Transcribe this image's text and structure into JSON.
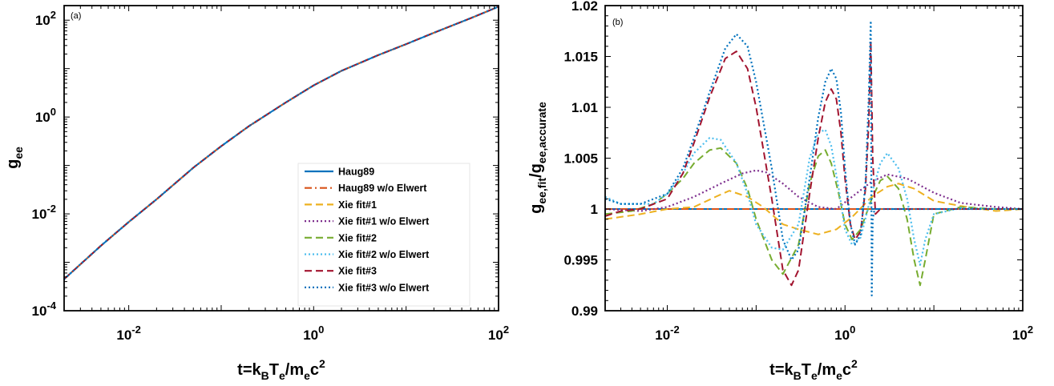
{
  "chart_data": [
    {
      "type": "line",
      "panel_label": "(a)",
      "xlabel": "t=k_B T_e/m_e c^2",
      "ylabel": "g_ee",
      "xscale": "log",
      "yscale": "log",
      "xlim": [
        0.002,
        100
      ],
      "ylim": [
        0.0001,
        200
      ],
      "xticks": [
        {
          "v": 0.01,
          "base": "10",
          "exp": "-2"
        },
        {
          "v": 1,
          "base": "10",
          "exp": "0"
        },
        {
          "v": 100,
          "base": "10",
          "exp": "2"
        }
      ],
      "yticks": [
        {
          "v": 0.0001,
          "base": "10",
          "exp": "-4"
        },
        {
          "v": 0.01,
          "base": "10",
          "exp": "-2"
        },
        {
          "v": 1,
          "base": "10",
          "exp": "0"
        },
        {
          "v": 100,
          "base": "10",
          "exp": "2"
        }
      ],
      "legend_position": "bottom-right",
      "grid": false,
      "series": [
        {
          "name": "Haug89",
          "color": "#0072BD",
          "dash": "solid",
          "x": [
            0.002,
            0.005,
            0.01,
            0.02,
            0.05,
            0.1,
            0.2,
            0.5,
            1,
            2,
            5,
            10,
            20,
            50,
            100
          ],
          "y": [
            0.00045,
            0.0022,
            0.0068,
            0.02,
            0.09,
            0.25,
            0.65,
            2.0,
            4.5,
            9.0,
            19,
            32,
            55,
            110,
            190
          ]
        },
        {
          "name": "Haug89 w/o Elwert",
          "color": "#D95319",
          "dash": "dashdot",
          "x": [
            0.002,
            0.005,
            0.01,
            0.02,
            0.05,
            0.1,
            0.2,
            0.5,
            1,
            2,
            5,
            10,
            20,
            50,
            100
          ],
          "y": [
            0.00045,
            0.0022,
            0.0068,
            0.02,
            0.09,
            0.25,
            0.65,
            2.0,
            4.5,
            9.0,
            19,
            32,
            55,
            110,
            190
          ]
        },
        {
          "name": "Xie fit#1",
          "color": "#EDB120",
          "dash": "dashed",
          "x": [
            0.002,
            0.005,
            0.01,
            0.02,
            0.05,
            0.1,
            0.2,
            0.5,
            1,
            2,
            5,
            10,
            20,
            50,
            100
          ],
          "y": [
            0.00045,
            0.0022,
            0.0068,
            0.02,
            0.09,
            0.25,
            0.65,
            2.0,
            4.5,
            9.0,
            19,
            32,
            55,
            110,
            190
          ]
        },
        {
          "name": "Xie fit#1 w/o Elwert",
          "color": "#7E2F8E",
          "dash": "dotted",
          "x": [
            0.002,
            0.005,
            0.01,
            0.02,
            0.05,
            0.1,
            0.2,
            0.5,
            1,
            2,
            5,
            10,
            20,
            50,
            100
          ],
          "y": [
            0.00045,
            0.0022,
            0.0068,
            0.02,
            0.09,
            0.25,
            0.65,
            2.0,
            4.5,
            9.0,
            19,
            32,
            55,
            110,
            190
          ]
        },
        {
          "name": "Xie fit#2",
          "color": "#77AC30",
          "dash": "dashed",
          "x": [
            0.002,
            0.005,
            0.01,
            0.02,
            0.05,
            0.1,
            0.2,
            0.5,
            1,
            2,
            5,
            10,
            20,
            50,
            100
          ],
          "y": [
            0.00045,
            0.0022,
            0.0068,
            0.02,
            0.09,
            0.25,
            0.65,
            2.0,
            4.5,
            9.0,
            19,
            32,
            55,
            110,
            190
          ]
        },
        {
          "name": "Xie fit#2 w/o Elwert",
          "color": "#4DBEEE",
          "dash": "dotted",
          "x": [
            0.002,
            0.005,
            0.01,
            0.02,
            0.05,
            0.1,
            0.2,
            0.5,
            1,
            2,
            5,
            10,
            20,
            50,
            100
          ],
          "y": [
            0.00045,
            0.0022,
            0.0068,
            0.02,
            0.09,
            0.25,
            0.65,
            2.0,
            4.5,
            9.0,
            19,
            32,
            55,
            110,
            190
          ]
        },
        {
          "name": "Xie fit#3",
          "color": "#A2142F",
          "dash": "dashed",
          "x": [
            0.002,
            0.005,
            0.01,
            0.02,
            0.05,
            0.1,
            0.2,
            0.5,
            1,
            2,
            5,
            10,
            20,
            50,
            100
          ],
          "y": [
            0.00045,
            0.0022,
            0.0068,
            0.02,
            0.09,
            0.25,
            0.65,
            2.0,
            4.5,
            9.0,
            19,
            32,
            55,
            110,
            190
          ]
        },
        {
          "name": "Xie fit#3 w/o Elwert",
          "color": "#0072BD",
          "dash": "dotted",
          "x": [
            0.002,
            0.005,
            0.01,
            0.02,
            0.05,
            0.1,
            0.2,
            0.5,
            1,
            2,
            5,
            10,
            20,
            50,
            100
          ],
          "y": [
            0.00045,
            0.0022,
            0.0068,
            0.02,
            0.09,
            0.25,
            0.65,
            2.0,
            4.5,
            9.0,
            19,
            32,
            55,
            110,
            190
          ]
        }
      ]
    },
    {
      "type": "line",
      "panel_label": "(b)",
      "xlabel": "t=k_B T_e/m_e c^2",
      "ylabel": "g_ee,fit/g_ee,accurate",
      "xscale": "log",
      "yscale": "linear",
      "xlim": [
        0.002,
        100
      ],
      "ylim": [
        0.99,
        1.02
      ],
      "xticks": [
        {
          "v": 0.01,
          "base": "10",
          "exp": "-2"
        },
        {
          "v": 1,
          "base": "10",
          "exp": "0"
        },
        {
          "v": 100,
          "base": "10",
          "exp": "2"
        }
      ],
      "yticks": [
        {
          "v": 0.99,
          "label": "0.99"
        },
        {
          "v": 0.995,
          "label": "0.995"
        },
        {
          "v": 1,
          "label": "1"
        },
        {
          "v": 1.005,
          "label": "1.005"
        },
        {
          "v": 1.01,
          "label": "1.01"
        },
        {
          "v": 1.015,
          "label": "1.015"
        },
        {
          "v": 1.02,
          "label": "1.02"
        }
      ],
      "grid": false,
      "series": [
        {
          "name": "Haug89",
          "color": "#0072BD",
          "dash": "solid",
          "x": [
            0.002,
            100
          ],
          "y": [
            1.0,
            1.0
          ]
        },
        {
          "name": "Haug89 w/o Elwert",
          "color": "#D95319",
          "dash": "dashdot",
          "x": [
            0.002,
            100
          ],
          "y": [
            1.0,
            1.0
          ]
        },
        {
          "name": "Xie fit#1",
          "color": "#EDB120",
          "dash": "dashed",
          "x": [
            0.002,
            0.005,
            0.01,
            0.02,
            0.035,
            0.05,
            0.08,
            0.12,
            0.2,
            0.3,
            0.5,
            0.8,
            1.2,
            2,
            3,
            4,
            6,
            10,
            20,
            50,
            100
          ],
          "y": [
            0.999,
            0.9995,
            1.0,
            1.0002,
            1.0012,
            1.0018,
            1.0012,
            1.0002,
            0.9985,
            0.998,
            0.9975,
            0.998,
            0.9992,
            1.0012,
            1.0022,
            1.0025,
            1.002,
            1.0008,
            1.0003,
            0.9998,
            1.0
          ]
        },
        {
          "name": "Xie fit#1 w/o Elwert",
          "color": "#7E2F8E",
          "dash": "dotted",
          "x": [
            0.002,
            0.005,
            0.01,
            0.02,
            0.04,
            0.07,
            0.1,
            0.13,
            0.2,
            0.3,
            0.5,
            0.8,
            1.2,
            2,
            3,
            5,
            10,
            20,
            50,
            100
          ],
          "y": [
            1.0,
            0.9998,
            1.0002,
            1.0012,
            1.0025,
            1.0035,
            1.0038,
            1.0036,
            1.0025,
            1.0012,
            1.0002,
            1.0,
            1.0012,
            1.0027,
            1.0034,
            1.003,
            1.0016,
            1.0006,
            1.0002,
            1.0
          ]
        },
        {
          "name": "Xie fit#2",
          "color": "#77AC30",
          "dash": "dashed",
          "x": [
            0.002,
            0.004,
            0.007,
            0.01,
            0.015,
            0.02,
            0.03,
            0.04,
            0.06,
            0.08,
            0.1,
            0.15,
            0.2,
            0.3,
            0.4,
            0.5,
            0.6,
            0.7,
            0.85,
            1.0,
            1.2,
            1.5,
            2,
            2.5,
            3,
            4,
            5,
            6,
            7,
            8,
            10,
            20,
            50,
            100
          ],
          "y": [
            0.9995,
            0.9998,
            1.0005,
            1.0015,
            1.003,
            1.0045,
            1.0058,
            1.006,
            1.0045,
            1.002,
            0.999,
            0.995,
            0.9936,
            0.9965,
            1.0025,
            1.0052,
            1.0058,
            1.0045,
            1.0015,
            0.9985,
            0.997,
            0.998,
            1.001,
            1.0028,
            1.0032,
            1.002,
            0.999,
            0.995,
            0.9925,
            0.995,
            0.9995,
            1.0002,
            1.0,
            1.0
          ]
        },
        {
          "name": "Xie fit#2 w/o Elwert",
          "color": "#4DBEEE",
          "dash": "dotted",
          "x": [
            0.002,
            0.003,
            0.004,
            0.007,
            0.01,
            0.015,
            0.02,
            0.03,
            0.04,
            0.06,
            0.08,
            0.1,
            0.15,
            0.2,
            0.3,
            0.4,
            0.5,
            0.6,
            0.7,
            0.85,
            1.0,
            1.2,
            1.5,
            2,
            2.5,
            3,
            4,
            5,
            6,
            7,
            8,
            10,
            20,
            50,
            100
          ],
          "y": [
            1.0012,
            1.0005,
            1.0005,
            1.0005,
            1.0015,
            1.0035,
            1.0055,
            1.007,
            1.0068,
            1.0045,
            1.0015,
            0.9985,
            0.9962,
            0.996,
            0.9985,
            1.005,
            1.0075,
            1.0078,
            1.0062,
            1.002,
            0.998,
            0.9965,
            0.9972,
            1.0015,
            1.0045,
            1.0055,
            1.004,
            1.001,
            0.997,
            0.9945,
            0.997,
            0.9995,
            1.0001,
            1.0,
            1.0
          ]
        },
        {
          "name": "Xie fit#3",
          "color": "#A2142F",
          "dash": "dashed",
          "x": [
            0.002,
            0.003,
            0.005,
            0.01,
            0.015,
            0.02,
            0.03,
            0.045,
            0.06,
            0.08,
            0.1,
            0.15,
            0.2,
            0.25,
            0.3,
            0.4,
            0.5,
            0.6,
            0.7,
            0.8,
            0.9,
            1.0,
            1.15,
            1.3,
            1.5,
            1.7,
            1.85,
            1.95,
            2.05,
            2.2,
            2.5,
            3,
            5,
            10,
            100
          ],
          "y": [
            0.9993,
            0.9998,
            1.0,
            1.001,
            1.0035,
            1.0065,
            1.011,
            1.0148,
            1.0155,
            1.0138,
            1.01,
            1.001,
            0.994,
            0.9925,
            0.994,
            1.0015,
            1.007,
            1.0105,
            1.0118,
            1.0108,
            1.0075,
            1.003,
            0.9985,
            0.997,
            0.9978,
            1.002,
            1.0085,
            1.0165,
            1.005,
            0.9995,
            1.0,
            1.0,
            1.0,
            1.0,
            1.0
          ]
        },
        {
          "name": "Xie fit#3 w/o Elwert",
          "color": "#0072BD",
          "dash": "dotted",
          "x": [
            0.002,
            0.003,
            0.005,
            0.01,
            0.015,
            0.02,
            0.03,
            0.045,
            0.06,
            0.08,
            0.1,
            0.15,
            0.2,
            0.25,
            0.3,
            0.4,
            0.5,
            0.6,
            0.7,
            0.8,
            0.9,
            1.0,
            1.15,
            1.3,
            1.5,
            1.7,
            1.85,
            1.95,
            2.0,
            2.05,
            2.15,
            2.5,
            3,
            5,
            10,
            100
          ],
          "y": [
            1.001,
            1.0005,
            1.0005,
            1.0015,
            1.004,
            1.007,
            1.0115,
            1.0158,
            1.0172,
            1.016,
            1.0125,
            1.004,
            0.997,
            0.995,
            0.996,
            1.003,
            1.009,
            1.0125,
            1.0138,
            1.0128,
            1.0095,
            1.004,
            0.9985,
            0.9965,
            0.9975,
            1.0025,
            1.011,
            1.0185,
            0.9915,
            0.999,
            1.0,
            1.0,
            1.0,
            1.0,
            1.0,
            1.0
          ]
        }
      ]
    }
  ]
}
